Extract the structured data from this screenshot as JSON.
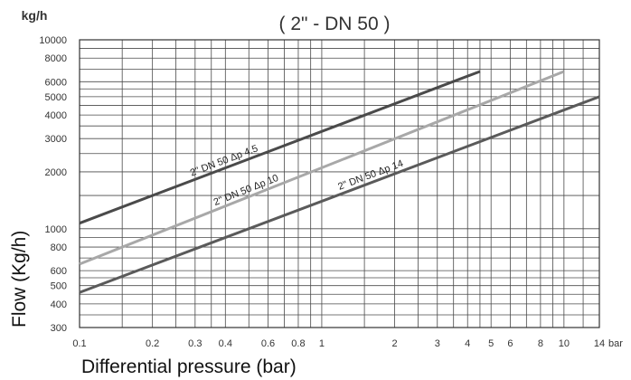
{
  "chart_data": {
    "type": "line",
    "title": "( 2\" - DN 50 )",
    "y_unit": "kg/h",
    "x_unit": "bar",
    "xlabel": "Differential pressure (bar)",
    "ylabel": "Flow (Kg/h)",
    "x_scale": "log",
    "y_scale": "log",
    "xlim": [
      0.1,
      14
    ],
    "ylim": [
      300,
      10000
    ],
    "grid": true,
    "x_ticks": [
      {
        "v": 0.1,
        "label": "0.1"
      },
      {
        "v": 0.2,
        "label": "0.2"
      },
      {
        "v": 0.3,
        "label": "0.3"
      },
      {
        "v": 0.4,
        "label": "0.4"
      },
      {
        "v": 0.6,
        "label": "0.6"
      },
      {
        "v": 0.8,
        "label": "0.8"
      },
      {
        "v": 1,
        "label": "1"
      },
      {
        "v": 2,
        "label": "2"
      },
      {
        "v": 3,
        "label": "3"
      },
      {
        "v": 4,
        "label": "4"
      },
      {
        "v": 5,
        "label": "5"
      },
      {
        "v": 6,
        "label": "6"
      },
      {
        "v": 8,
        "label": "8"
      },
      {
        "v": 10,
        "label": "10"
      },
      {
        "v": 14,
        "label": "14"
      }
    ],
    "y_ticks": [
      {
        "v": 300,
        "label": "300"
      },
      {
        "v": 400,
        "label": "400"
      },
      {
        "v": 500,
        "label": "500"
      },
      {
        "v": 600,
        "label": "600"
      },
      {
        "v": 800,
        "label": "800"
      },
      {
        "v": 1000,
        "label": "1000"
      },
      {
        "v": 2000,
        "label": "2000"
      },
      {
        "v": 3000,
        "label": "3000"
      },
      {
        "v": 4000,
        "label": "4000"
      },
      {
        "v": 5000,
        "label": "5000"
      },
      {
        "v": 6000,
        "label": "6000"
      },
      {
        "v": 8000,
        "label": "8000"
      },
      {
        "v": 10000,
        "label": "10000"
      }
    ],
    "x_grid": [
      0.1,
      0.15,
      0.2,
      0.25,
      0.3,
      0.35,
      0.4,
      0.5,
      0.6,
      0.7,
      0.8,
      0.9,
      1,
      1.5,
      2,
      2.5,
      3,
      3.5,
      4,
      4.5,
      5,
      6,
      7,
      8,
      9,
      10,
      12,
      14
    ],
    "y_grid": [
      300,
      350,
      400,
      450,
      500,
      550,
      600,
      700,
      800,
      900,
      1000,
      1500,
      2000,
      2500,
      3000,
      3500,
      4000,
      4500,
      5000,
      5500,
      6000,
      7000,
      8000,
      9000,
      10000
    ],
    "series": [
      {
        "name": "2\" DN 50 Δp 4.5",
        "color": "#4a4a4a",
        "x": [
          0.1,
          4.5
        ],
        "y": [
          1070,
          6800
        ],
        "label_at": 0.28
      },
      {
        "name": "2\" DN 50 Δp 10",
        "color": "#a8a8a8",
        "x": [
          0.1,
          10
        ],
        "y": [
          650,
          6800
        ],
        "label_at": 0.28
      },
      {
        "name": "2\" DN 50 Δp 14",
        "color": "#5a5a5a",
        "x": [
          0.1,
          14
        ],
        "y": [
          460,
          5000
        ],
        "label_at": 0.5
      }
    ]
  }
}
